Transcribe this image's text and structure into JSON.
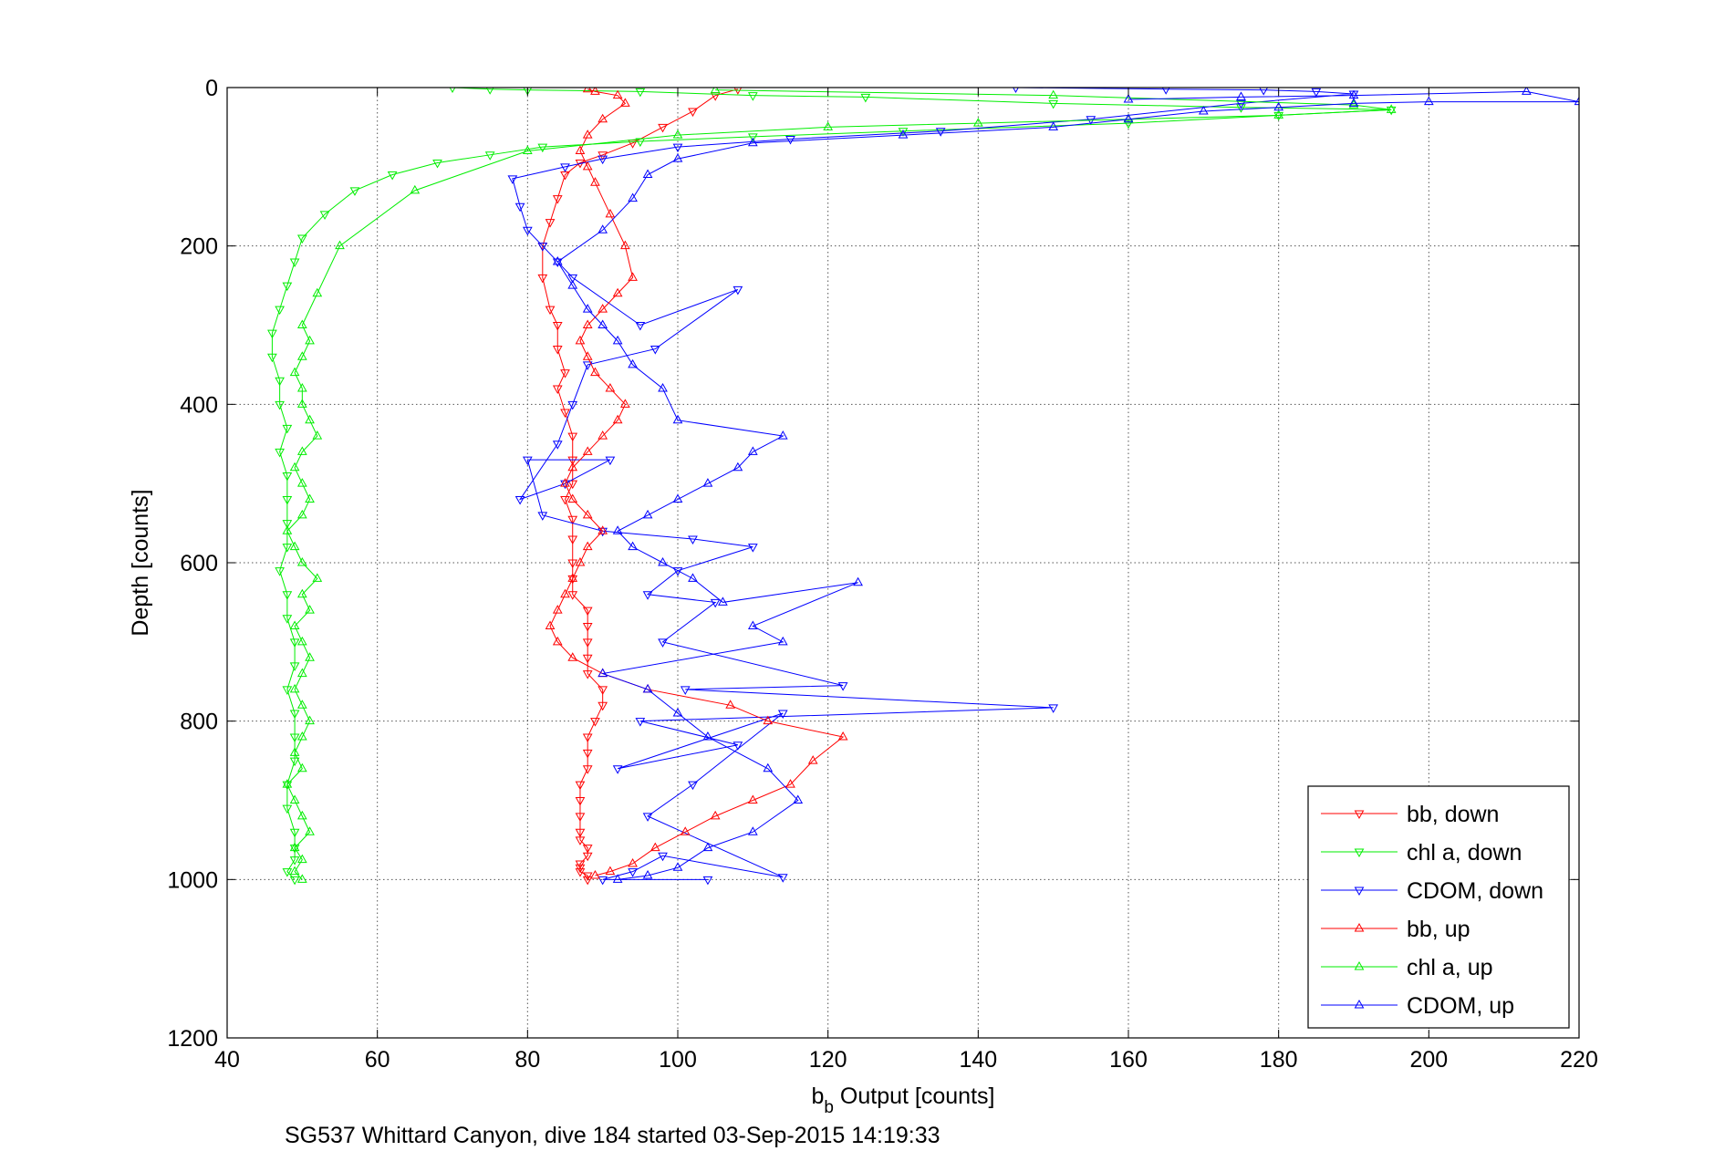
{
  "chart_data": {
    "type": "scatter",
    "title": "",
    "xlabel_main": "b",
    "xlabel_sub": "b",
    "xlabel_rest": " Output [counts]",
    "ylabel": "Depth [counts]",
    "caption": "SG537 Whittard Canyon, dive 184 started 03-Sep-2015 14:19:33",
    "xlim": [
      40,
      220
    ],
    "ylim": [
      0,
      1200
    ],
    "y_reversed": true,
    "grid": true,
    "legend_placement": "bottom-right",
    "xticks": [
      "40",
      "60",
      "80",
      "100",
      "120",
      "140",
      "160",
      "180",
      "200",
      "220"
    ],
    "yticks": [
      "0",
      "200",
      "400",
      "600",
      "800",
      "1000",
      "1200"
    ],
    "series": [
      {
        "name": "bb, down",
        "color": "#ff0000",
        "marker": "triangle-down",
        "x": [
          108,
          105,
          102,
          98,
          94,
          90,
          87,
          85,
          84,
          83,
          82,
          82,
          83,
          84,
          84,
          85,
          84,
          85,
          86,
          86,
          86,
          85,
          86,
          86,
          86,
          86,
          86,
          88,
          88,
          88,
          88,
          88,
          90,
          90,
          89,
          88,
          88,
          88,
          87,
          87,
          87,
          87,
          87,
          88,
          88,
          87,
          87,
          87,
          88,
          88
        ],
        "y": [
          2,
          10,
          30,
          50,
          70,
          85,
          95,
          110,
          140,
          170,
          200,
          240,
          280,
          300,
          330,
          360,
          380,
          410,
          440,
          470,
          500,
          520,
          545,
          570,
          600,
          620,
          640,
          660,
          680,
          700,
          720,
          740,
          760,
          780,
          800,
          820,
          840,
          860,
          880,
          900,
          920,
          940,
          950,
          960,
          970,
          980,
          985,
          990,
          995,
          1000
        ]
      },
      {
        "name": "chl a, down",
        "color": "#00ee00",
        "marker": "triangle-down",
        "x": [
          70,
          75,
          80,
          95,
          110,
          125,
          150,
          175,
          195,
          180,
          160,
          130,
          110,
          95,
          82,
          75,
          68,
          62,
          57,
          53,
          50,
          49,
          48,
          47,
          46,
          46,
          47,
          47,
          48,
          47,
          48,
          48,
          48,
          48,
          47,
          48,
          48,
          49,
          49,
          48,
          49,
          49,
          49,
          48,
          48,
          49,
          49,
          49,
          48,
          49
        ],
        "y": [
          0,
          2,
          3,
          5,
          10,
          12,
          20,
          25,
          28,
          35,
          45,
          55,
          62,
          68,
          75,
          85,
          95,
          110,
          130,
          160,
          190,
          220,
          250,
          280,
          310,
          340,
          370,
          400,
          430,
          460,
          490,
          520,
          550,
          580,
          610,
          640,
          670,
          700,
          730,
          760,
          790,
          820,
          850,
          880,
          910,
          940,
          960,
          975,
          990,
          1000
        ]
      },
      {
        "name": "CDOM, down",
        "color": "#0000ff",
        "marker": "triangle-down",
        "x": [
          145,
          165,
          178,
          185,
          190,
          175,
          155,
          135,
          115,
          100,
          90,
          85,
          78,
          79,
          80,
          82,
          84,
          86,
          95,
          108,
          97,
          88,
          86,
          84,
          79,
          85,
          91,
          80,
          82,
          90,
          102,
          110,
          100,
          96,
          105,
          98,
          122,
          101,
          150,
          95,
          108,
          92,
          114,
          102,
          96,
          114,
          98,
          94,
          90,
          104
        ],
        "y": [
          0,
          2,
          3,
          5,
          8,
          20,
          40,
          55,
          65,
          75,
          90,
          100,
          115,
          150,
          180,
          200,
          220,
          240,
          300,
          255,
          330,
          350,
          400,
          450,
          520,
          500,
          470,
          470,
          540,
          560,
          570,
          580,
          610,
          640,
          650,
          700,
          755,
          760,
          783,
          800,
          830,
          860,
          790,
          880,
          920,
          997,
          970,
          990,
          1000,
          1000
        ]
      },
      {
        "name": "bb, up",
        "color": "#ff0000",
        "marker": "triangle-up",
        "x": [
          89,
          91,
          94,
          97,
          101,
          105,
          110,
          115,
          118,
          122,
          112,
          107,
          96,
          90,
          86,
          84,
          83,
          84,
          85,
          86,
          87,
          88,
          90,
          88,
          86,
          85,
          86,
          88,
          90,
          92,
          93,
          91,
          89,
          88,
          87,
          88,
          90,
          92,
          94,
          93,
          91,
          89,
          88,
          87,
          88,
          90,
          93,
          92,
          89,
          88
        ],
        "y": [
          995,
          990,
          980,
          960,
          940,
          920,
          900,
          880,
          850,
          820,
          800,
          780,
          760,
          740,
          720,
          700,
          680,
          660,
          640,
          620,
          600,
          580,
          560,
          540,
          520,
          500,
          480,
          460,
          440,
          420,
          400,
          380,
          360,
          340,
          320,
          300,
          280,
          260,
          240,
          200,
          160,
          120,
          100,
          80,
          60,
          40,
          20,
          10,
          5,
          2
        ]
      },
      {
        "name": "chl a, up",
        "color": "#00ee00",
        "marker": "triangle-up",
        "x": [
          50,
          49,
          50,
          49,
          51,
          50,
          49,
          48,
          50,
          49,
          50,
          51,
          50,
          49,
          50,
          51,
          50,
          49,
          51,
          50,
          52,
          50,
          49,
          48,
          50,
          51,
          50,
          49,
          50,
          52,
          51,
          50,
          50,
          49,
          50,
          51,
          50,
          52,
          55,
          65,
          80,
          100,
          120,
          140,
          160,
          180,
          195,
          190,
          150,
          105
        ],
        "y": [
          1000,
          990,
          975,
          960,
          940,
          920,
          900,
          880,
          860,
          840,
          820,
          800,
          780,
          760,
          740,
          720,
          700,
          680,
          660,
          640,
          620,
          600,
          580,
          560,
          540,
          520,
          500,
          480,
          460,
          440,
          420,
          400,
          380,
          360,
          340,
          320,
          300,
          260,
          200,
          130,
          80,
          60,
          50,
          45,
          40,
          35,
          28,
          22,
          10,
          3
        ]
      },
      {
        "name": "CDOM, up",
        "color": "#0000ff",
        "marker": "triangle-up",
        "x": [
          92,
          96,
          100,
          104,
          110,
          116,
          112,
          104,
          100,
          96,
          90,
          114,
          110,
          124,
          106,
          102,
          98,
          94,
          92,
          96,
          100,
          104,
          108,
          110,
          114,
          100,
          98,
          94,
          92,
          90,
          88,
          86,
          84,
          90,
          94,
          96,
          100,
          110,
          130,
          150,
          160,
          170,
          180,
          190,
          200,
          220,
          213,
          190,
          175,
          160
        ],
        "y": [
          1000,
          995,
          985,
          960,
          940,
          900,
          860,
          820,
          790,
          760,
          740,
          700,
          680,
          625,
          650,
          620,
          600,
          580,
          560,
          540,
          520,
          500,
          480,
          460,
          440,
          420,
          380,
          350,
          320,
          300,
          280,
          250,
          220,
          180,
          140,
          110,
          90,
          70,
          60,
          50,
          40,
          30,
          25,
          20,
          18,
          18,
          5,
          10,
          12,
          15
        ]
      }
    ]
  }
}
